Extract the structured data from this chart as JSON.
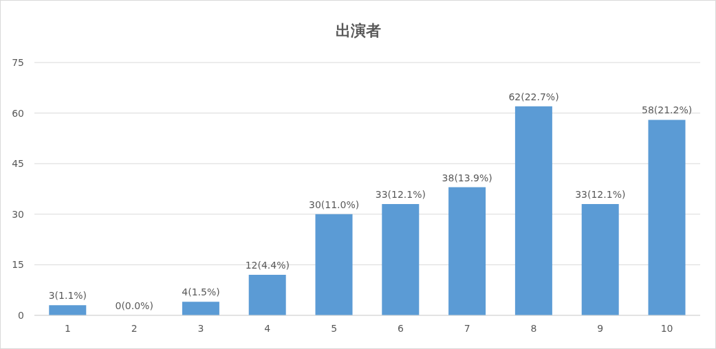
{
  "chart_data": {
    "type": "bar",
    "title": "出演者",
    "categories": [
      "1",
      "2",
      "3",
      "4",
      "5",
      "6",
      "7",
      "8",
      "9",
      "10"
    ],
    "values": [
      3,
      0,
      4,
      12,
      30,
      33,
      38,
      62,
      33,
      58
    ],
    "value_labels": [
      "3(1.1%)",
      "0(0.0%)",
      "4(1.5%)",
      "12(4.4%)",
      "30(11.0%)",
      "33(12.1%)",
      "38(13.9%)",
      "62(22.7%)",
      "33(12.1%)",
      "58(21.2%)"
    ],
    "color": "#5b9bd5",
    "ylim": [
      0,
      75
    ],
    "yticks": [
      0,
      15,
      30,
      45,
      60,
      75
    ],
    "grid": "y"
  }
}
